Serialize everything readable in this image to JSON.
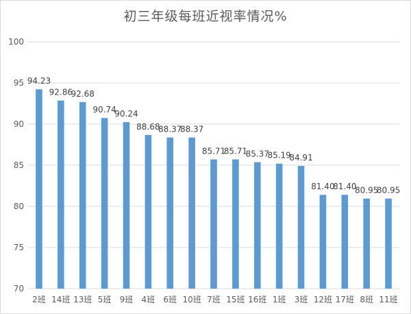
{
  "chart_data": {
    "type": "bar",
    "title": "初三年级每班近视率情况%",
    "xlabel": "",
    "ylabel": "",
    "ylim": [
      70,
      100
    ],
    "yticks": [
      70,
      75,
      80,
      85,
      90,
      95,
      100
    ],
    "grid": true,
    "legend": "none",
    "bar_color": "#5b9bd5",
    "grid_color": "#d9d9d9",
    "categories": [
      "2班",
      "14班",
      "13班",
      "5班",
      "9班",
      "4班",
      "6班",
      "10班",
      "7班",
      "15班",
      "16班",
      "1班",
      "3班",
      "12班",
      "17班",
      "8班",
      "11班"
    ],
    "values": [
      94.23,
      92.86,
      92.68,
      90.74,
      90.24,
      88.68,
      88.37,
      88.37,
      85.71,
      85.71,
      85.37,
      85.19,
      84.91,
      81.4,
      81.4,
      80.95,
      80.95
    ],
    "value_labels": [
      "94.23",
      "92.86",
      "92.68",
      "90.74",
      "90.24",
      "88.68",
      "88.37",
      "88.37",
      "85.71",
      "85.71",
      "85.37",
      "85.19",
      "84.91",
      "81.40",
      "81.40",
      "80.95",
      "80.95"
    ]
  }
}
